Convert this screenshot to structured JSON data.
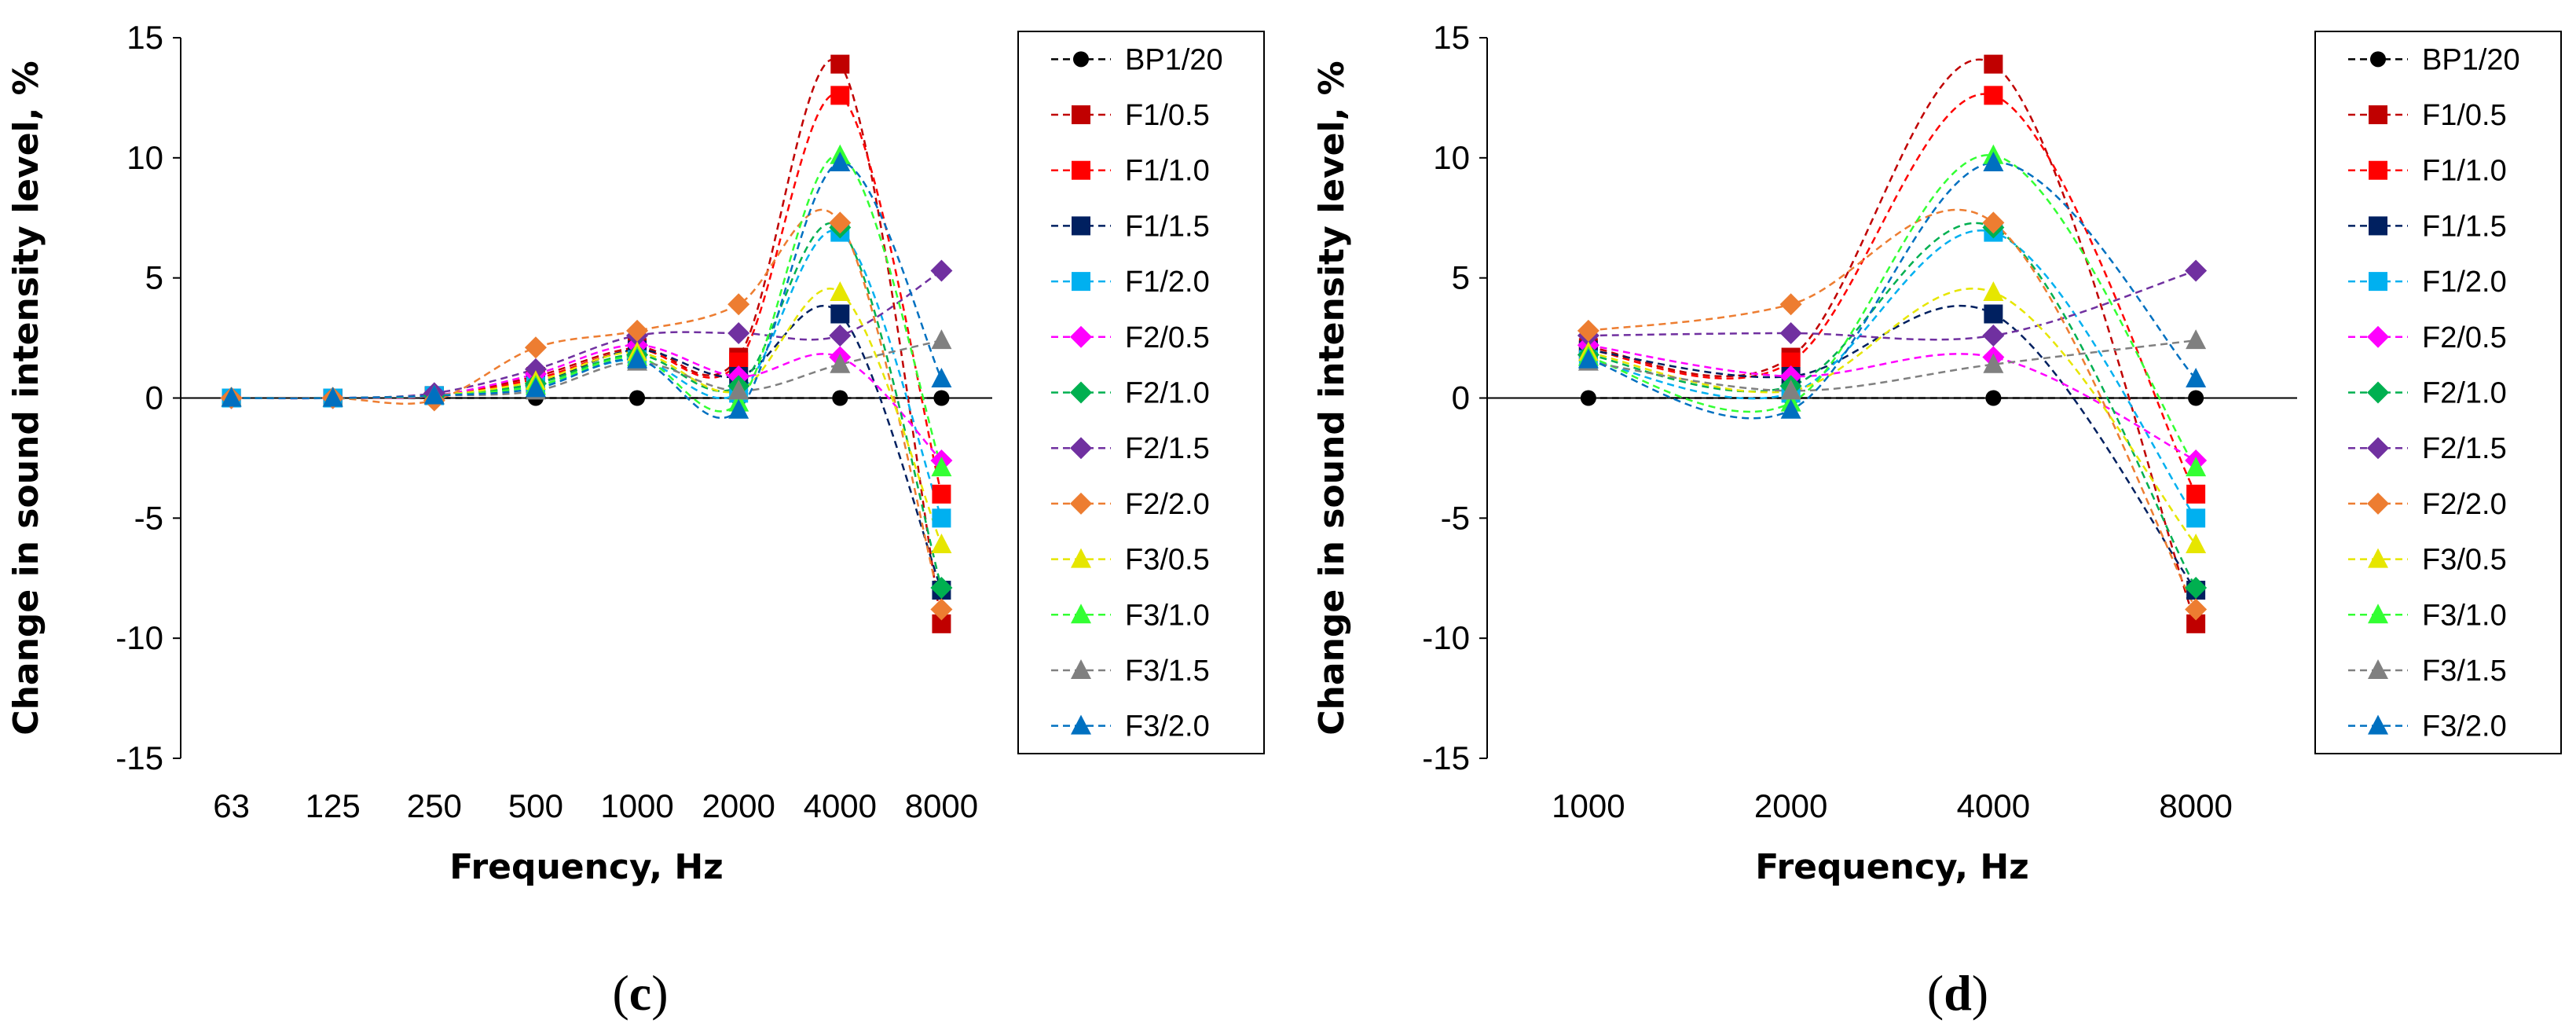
{
  "figure_captions": [
    "c",
    "d"
  ],
  "chart_data": [
    {
      "id": "c",
      "type": "line",
      "caption": "c",
      "xlabel": "Frequency, Hz",
      "ylabel": "Change in sound intensity level, %",
      "categories": [
        "63",
        "125",
        "250",
        "500",
        "1000",
        "2000",
        "4000",
        "8000"
      ],
      "ylim": [
        -15,
        15
      ],
      "yticks": [
        -15,
        -10,
        -5,
        0,
        5,
        10,
        15
      ],
      "grid": false,
      "legend_position": "right",
      "series": [
        {
          "name": "BP1/20",
          "color": "#000000",
          "marker": "circle",
          "values": [
            0,
            0,
            0,
            0,
            0,
            0,
            0,
            0
          ]
        },
        {
          "name": "F1/0.5",
          "color": "#C00000",
          "marker": "square",
          "values": [
            0,
            0,
            0.1,
            0.9,
            2.1,
            1.7,
            13.9,
            -9.4
          ]
        },
        {
          "name": "F1/1.0",
          "color": "#FF0000",
          "marker": "square",
          "values": [
            0,
            0,
            0.1,
            0.8,
            2.0,
            1.5,
            12.6,
            -4.0
          ]
        },
        {
          "name": "F1/1.5",
          "color": "#002060",
          "marker": "square",
          "values": [
            0,
            0,
            0.1,
            0.6,
            2.0,
            0.9,
            3.5,
            -8.0
          ]
        },
        {
          "name": "F1/2.0",
          "color": "#00B0F0",
          "marker": "square",
          "values": [
            0,
            0,
            0.1,
            0.5,
            1.6,
            0.2,
            6.9,
            -5.0
          ]
        },
        {
          "name": "F2/0.5",
          "color": "#FF00FF",
          "marker": "diamond",
          "values": [
            0,
            0,
            0.1,
            1.0,
            2.2,
            0.9,
            1.7,
            -2.6
          ]
        },
        {
          "name": "F2/1.0",
          "color": "#00B050",
          "marker": "diamond",
          "values": [
            0,
            0,
            0.1,
            0.6,
            1.8,
            0.5,
            7.1,
            -7.9
          ]
        },
        {
          "name": "F2/1.5",
          "color": "#7030A0",
          "marker": "diamond",
          "values": [
            0,
            0,
            0.2,
            1.2,
            2.6,
            2.7,
            2.6,
            5.3
          ]
        },
        {
          "name": "F2/2.0",
          "color": "#ED7D31",
          "marker": "diamond",
          "values": [
            0,
            0,
            -0.1,
            2.1,
            2.8,
            3.9,
            7.3,
            -8.8
          ]
        },
        {
          "name": "F3/0.5",
          "color": "#E6E600",
          "marker": "triangle",
          "values": [
            0,
            0,
            0.1,
            0.7,
            1.9,
            0.3,
            4.4,
            -6.1
          ]
        },
        {
          "name": "F3/1.0",
          "color": "#33FF33",
          "marker": "triangle",
          "values": [
            0,
            0,
            0.1,
            0.5,
            1.7,
            -0.2,
            10.1,
            -2.9
          ]
        },
        {
          "name": "F3/1.5",
          "color": "#808080",
          "marker": "triangle",
          "values": [
            0,
            0,
            0.1,
            0.3,
            1.5,
            0.3,
            1.4,
            2.4
          ]
        },
        {
          "name": "F3/2.0",
          "color": "#0070C0",
          "marker": "triangle",
          "values": [
            0,
            0,
            0.1,
            0.4,
            1.6,
            -0.5,
            9.8,
            0.8
          ]
        }
      ]
    },
    {
      "id": "d",
      "type": "line",
      "caption": "d",
      "xlabel": "Frequency, Hz",
      "ylabel": "Change in sound intensity level, %",
      "categories": [
        "1000",
        "2000",
        "4000",
        "8000"
      ],
      "ylim": [
        -15,
        15
      ],
      "yticks": [
        -15,
        -10,
        -5,
        0,
        5,
        10,
        15
      ],
      "grid": false,
      "legend_position": "right",
      "series": [
        {
          "name": "BP1/20",
          "color": "#000000",
          "marker": "circle",
          "values": [
            0,
            0,
            0,
            0
          ]
        },
        {
          "name": "F1/0.5",
          "color": "#C00000",
          "marker": "square",
          "values": [
            2.1,
            1.7,
            13.9,
            -9.4
          ]
        },
        {
          "name": "F1/1.0",
          "color": "#FF0000",
          "marker": "square",
          "values": [
            2.0,
            1.5,
            12.6,
            -4.0
          ]
        },
        {
          "name": "F1/1.5",
          "color": "#002060",
          "marker": "square",
          "values": [
            2.0,
            0.9,
            3.5,
            -8.0
          ]
        },
        {
          "name": "F1/2.0",
          "color": "#00B0F0",
          "marker": "square",
          "values": [
            1.6,
            0.2,
            6.9,
            -5.0
          ]
        },
        {
          "name": "F2/0.5",
          "color": "#FF00FF",
          "marker": "diamond",
          "values": [
            2.2,
            0.9,
            1.7,
            -2.6
          ]
        },
        {
          "name": "F2/1.0",
          "color": "#00B050",
          "marker": "diamond",
          "values": [
            1.8,
            0.5,
            7.1,
            -7.9
          ]
        },
        {
          "name": "F2/1.5",
          "color": "#7030A0",
          "marker": "diamond",
          "values": [
            2.6,
            2.7,
            2.6,
            5.3
          ]
        },
        {
          "name": "F2/2.0",
          "color": "#ED7D31",
          "marker": "diamond",
          "values": [
            2.8,
            3.9,
            7.3,
            -8.8
          ]
        },
        {
          "name": "F3/0.5",
          "color": "#E6E600",
          "marker": "triangle",
          "values": [
            1.9,
            0.3,
            4.4,
            -6.1
          ]
        },
        {
          "name": "F3/1.0",
          "color": "#33FF33",
          "marker": "triangle",
          "values": [
            1.7,
            -0.2,
            10.1,
            -2.9
          ]
        },
        {
          "name": "F3/1.5",
          "color": "#808080",
          "marker": "triangle",
          "values": [
            1.5,
            0.3,
            1.4,
            2.4
          ]
        },
        {
          "name": "F3/2.0",
          "color": "#0070C0",
          "marker": "triangle",
          "values": [
            1.6,
            -0.5,
            9.8,
            0.8
          ]
        }
      ]
    }
  ]
}
